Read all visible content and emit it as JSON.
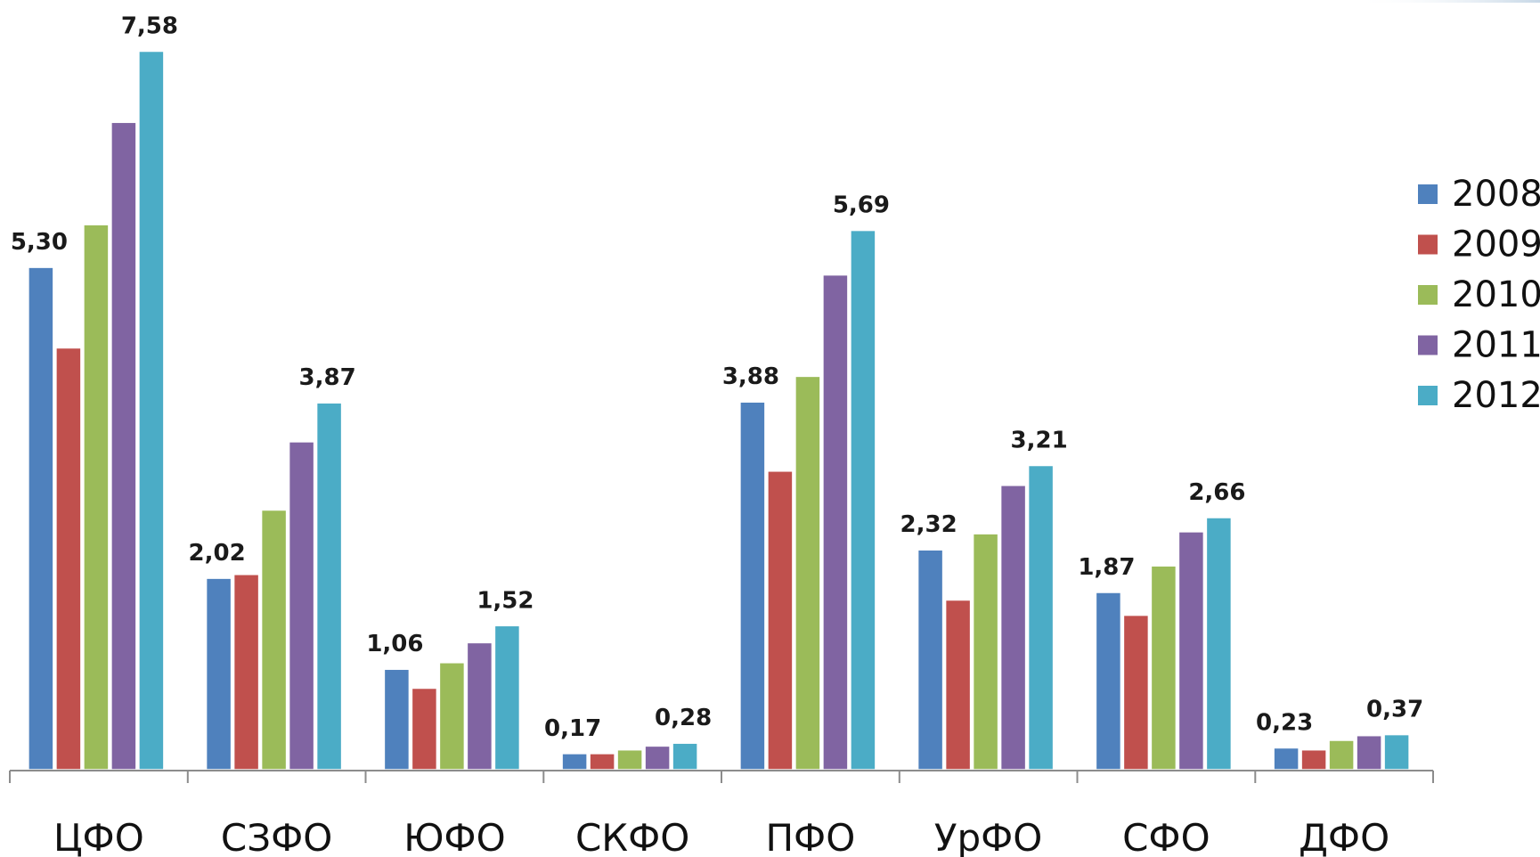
{
  "chart_data": {
    "type": "bar",
    "categories": [
      "ЦФО",
      "СЗФО",
      "ЮФО",
      "СКФО",
      "ПФО",
      "УрФО",
      "СФО",
      "ДФО"
    ],
    "series": [
      {
        "name": "2008",
        "color": "#4F81BD",
        "values": [
          5.3,
          2.02,
          1.06,
          0.17,
          3.88,
          2.32,
          1.87,
          0.23
        ]
      },
      {
        "name": "2009",
        "color": "#C0504D",
        "values": [
          4.45,
          2.06,
          0.86,
          0.17,
          3.15,
          1.79,
          1.63,
          0.21
        ]
      },
      {
        "name": "2010",
        "color": "#9BBB59",
        "values": [
          5.75,
          2.74,
          1.13,
          0.21,
          4.15,
          2.49,
          2.15,
          0.31
        ]
      },
      {
        "name": "2011",
        "color": "#8064A2",
        "values": [
          6.83,
          3.46,
          1.34,
          0.25,
          5.22,
          3.0,
          2.51,
          0.36
        ]
      },
      {
        "name": "2012",
        "color": "#4BACC6",
        "values": [
          7.58,
          3.87,
          1.52,
          0.28,
          5.69,
          3.21,
          2.66,
          0.37
        ]
      }
    ],
    "data_labels": [
      {
        "category": "ЦФО",
        "series": "2008",
        "text": "5,30"
      },
      {
        "category": "ЦФО",
        "series": "2012",
        "text": "7,58"
      },
      {
        "category": "СЗФО",
        "series": "2008",
        "text": "2,02"
      },
      {
        "category": "СЗФО",
        "series": "2012",
        "text": "3,87"
      },
      {
        "category": "ЮФО",
        "series": "2008",
        "text": "1,06"
      },
      {
        "category": "ЮФО",
        "series": "2012",
        "text": "1,52"
      },
      {
        "category": "СКФО",
        "series": "2008",
        "text": "0,17"
      },
      {
        "category": "СКФО",
        "series": "2012",
        "text": "0,28"
      },
      {
        "category": "ПФО",
        "series": "2008",
        "text": "3,88"
      },
      {
        "category": "ПФО",
        "series": "2012",
        "text": "5,69"
      },
      {
        "category": "УрФО",
        "series": "2008",
        "text": "2,32"
      },
      {
        "category": "УрФО",
        "series": "2012",
        "text": "3,21"
      },
      {
        "category": "СФО",
        "series": "2008",
        "text": "1,87"
      },
      {
        "category": "СФО",
        "series": "2012",
        "text": "2,66"
      },
      {
        "category": "ДФО",
        "series": "2008",
        "text": "0,23"
      },
      {
        "category": "ДФО",
        "series": "2012",
        "text": "0,37"
      }
    ],
    "title": "",
    "xlabel": "",
    "ylabel": "",
    "ylim": [
      0,
      8
    ],
    "grid": false,
    "legend": "right"
  }
}
